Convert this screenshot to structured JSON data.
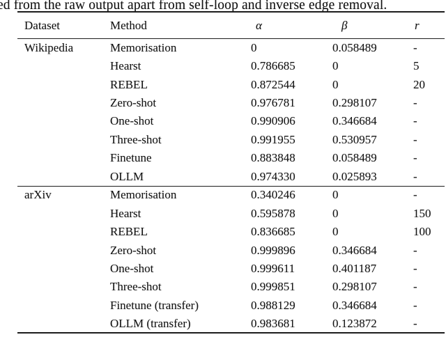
{
  "caption": {
    "text": "ed from the raw output apart from self-loop and inverse edge removal."
  },
  "table": {
    "columns": [
      "Dataset",
      "Method",
      "α",
      "β",
      "r"
    ],
    "sections": [
      {
        "dataset": "Wikipedia",
        "rows": [
          {
            "method": "Memorisation",
            "alpha": "0",
            "beta": "0.058489",
            "r": "-"
          },
          {
            "method": "Hearst",
            "alpha": "0.786685",
            "beta": "0",
            "r": "5"
          },
          {
            "method": "REBEL",
            "alpha": "0.872544",
            "beta": "0",
            "r": "20"
          },
          {
            "method": "Zero-shot",
            "alpha": "0.976781",
            "beta": "0.298107",
            "r": "-"
          },
          {
            "method": "One-shot",
            "alpha": "0.990906",
            "beta": "0.346684",
            "r": "-"
          },
          {
            "method": "Three-shot",
            "alpha": "0.991955",
            "beta": "0.530957",
            "r": "-"
          },
          {
            "method": "Finetune",
            "alpha": "0.883848",
            "beta": "0.058489",
            "r": "-"
          },
          {
            "method": "OLLM",
            "alpha": "0.974330",
            "beta": "0.025893",
            "r": "-"
          }
        ]
      },
      {
        "dataset": "arXiv",
        "rows": [
          {
            "method": "Memorisation",
            "alpha": "0.340246",
            "beta": "0",
            "r": "-"
          },
          {
            "method": "Hearst",
            "alpha": "0.595878",
            "beta": "0",
            "r": "150"
          },
          {
            "method": "REBEL",
            "alpha": "0.836685",
            "beta": "0",
            "r": "100"
          },
          {
            "method": "Zero-shot",
            "alpha": "0.999896",
            "beta": "0.346684",
            "r": "-"
          },
          {
            "method": "One-shot",
            "alpha": "0.999611",
            "beta": "0.401187",
            "r": "-"
          },
          {
            "method": "Three-shot",
            "alpha": "0.999851",
            "beta": "0.298107",
            "r": "-"
          },
          {
            "method": "Finetune (transfer)",
            "alpha": "0.988129",
            "beta": "0.346684",
            "r": "-"
          },
          {
            "method": "OLLM (transfer)",
            "alpha": "0.983681",
            "beta": "0.123872",
            "r": "-"
          }
        ]
      }
    ]
  }
}
